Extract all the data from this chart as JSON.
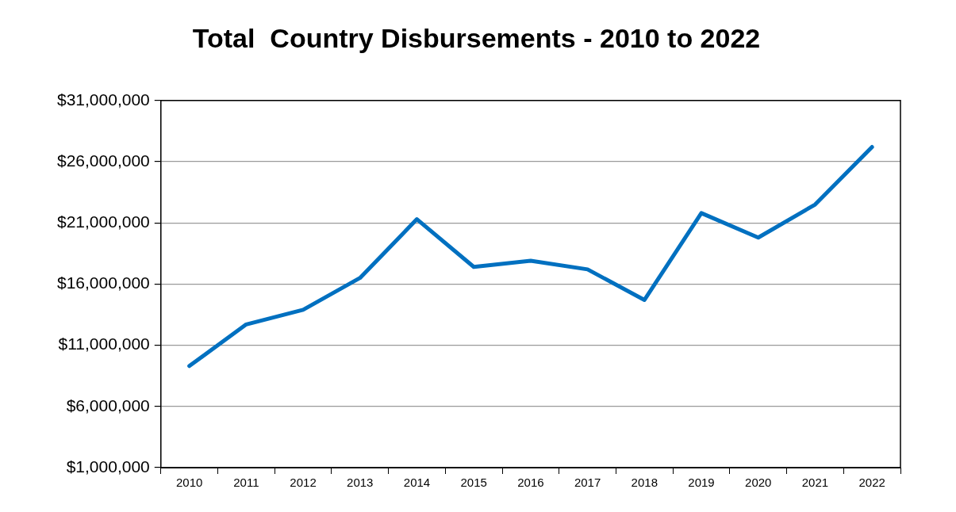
{
  "chart_data": {
    "type": "line",
    "title": "Total  Country Disbursements - 2010 to 2022",
    "categories": [
      "2010",
      "2011",
      "2012",
      "2013",
      "2014",
      "2015",
      "2016",
      "2017",
      "2018",
      "2019",
      "2020",
      "2021",
      "2022"
    ],
    "series": [
      {
        "color": "#0070c0",
        "values": [
          9300000,
          12700000,
          13900000,
          16500000,
          21300000,
          17400000,
          17900000,
          17200000,
          14700000,
          21800000,
          19800000,
          22500000,
          27200000
        ]
      }
    ],
    "ylim": [
      1000000,
      31000000
    ],
    "yticks": [
      {
        "value": 1000000,
        "label": "$1,000,000"
      },
      {
        "value": 6000000,
        "label": "$6,000,000"
      },
      {
        "value": 11000000,
        "label": "$11,000,000"
      },
      {
        "value": 16000000,
        "label": "$16,000,000"
      },
      {
        "value": 21000000,
        "label": "$21,000,000"
      },
      {
        "value": 26000000,
        "label": "$26,000,000"
      },
      {
        "value": 31000000,
        "label": "$31,000,000"
      }
    ],
    "grid": "y",
    "legend": false,
    "marker": "none",
    "line_style": "solid"
  }
}
